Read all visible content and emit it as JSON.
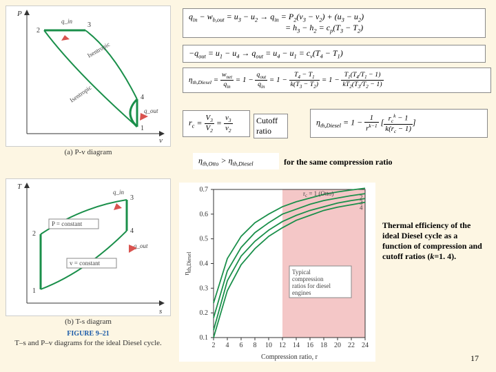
{
  "left": {
    "pv": {
      "y_axis": "P",
      "x_axis": "v",
      "q_in": "q_in",
      "q_out": "q_out",
      "points": [
        "1",
        "2",
        "3",
        "4"
      ],
      "iso_top": "Isentropic",
      "iso_bot": "Isentropic",
      "caption": "(a)  P-v diagram"
    },
    "ts": {
      "y_axis": "T",
      "x_axis": "s",
      "q_in": "q_in",
      "q_out": "q_out",
      "points": [
        "1",
        "2",
        "3",
        "4"
      ],
      "p_const": "P = constant",
      "v_const": "v = constant",
      "caption": "(b)  T-s diagram"
    },
    "fig_label": "FIGURE 9–21",
    "fig_caption": "T–s and P–v diagrams for the ideal Diesel cycle."
  },
  "eq1": {
    "text": "q_in − w_b,out = u_3 − u_2 → q_in = P_2(v_3 − v_2) + (u_3 − u_2)",
    "line2": "= h_3 − h_2 = c_p(T_3 − T_2)"
  },
  "eq2": {
    "text": "−q_out = u_1 − u_4 → q_out = u_4 − u_1 = c_v(T_4 − T_1)"
  },
  "eq3": {
    "lhs": "η_th,Diesel",
    "body": "= w_net / q_in = 1 − q_out / q_in = 1 − (T_4 − T_1)/(k(T_3 − T_2)) = 1 − T_1(T_4/T_1 − 1)/(kT_2(T_3/T_2 − 1))"
  },
  "cutoff_ratio_label": "Cutoff ratio",
  "eq_rc": "r_c = V_3/V_2 = v_3/v_2",
  "eq_eta_rc": {
    "lhs": "η_th,Diesel",
    "body": "= 1 − (1/r^{k−1})·[(r_c^k − 1)/(k(r_c − 1))]"
  },
  "eq_compare": "η_th,Otto > η_th,Diesel",
  "same_cr_text": "for the same compression ratio",
  "right_text": "Thermal efficiency of the ideal Diesel cycle as a function of compression and cutoff ratios (k=1.4).",
  "page": "17",
  "chart": {
    "y_label": "η_th,Diesel",
    "x_label": "Compression ratio, r",
    "xlim": [
      2,
      24
    ],
    "xticks": [
      2,
      4,
      6,
      8,
      10,
      12,
      14,
      16,
      18,
      20,
      22,
      24
    ],
    "ylim": [
      0.1,
      0.7
    ],
    "yticks": [
      0.1,
      0.2,
      0.3,
      0.4,
      0.5,
      0.6,
      0.7
    ],
    "shaded_band_x": [
      12,
      24
    ],
    "shaded_color": "#f4c7c7",
    "shaded_label": "Typical compression ratios for diesel engines",
    "curve_color": "#1a8f4a",
    "curves": {
      "rc1": {
        "label": "r_c = 1 (Otto)",
        "pts": [
          [
            2,
            0.24
          ],
          [
            4,
            0.42
          ],
          [
            6,
            0.51
          ],
          [
            8,
            0.565
          ],
          [
            10,
            0.6
          ],
          [
            12,
            0.63
          ],
          [
            14,
            0.65
          ],
          [
            16,
            0.665
          ],
          [
            18,
            0.68
          ],
          [
            20,
            0.69
          ],
          [
            22,
            0.698
          ],
          [
            24,
            0.705
          ]
        ]
      },
      "rc2": {
        "label": "2",
        "pts": [
          [
            2,
            0.18
          ],
          [
            4,
            0.37
          ],
          [
            6,
            0.465
          ],
          [
            8,
            0.525
          ],
          [
            10,
            0.565
          ],
          [
            12,
            0.6
          ],
          [
            14,
            0.62
          ],
          [
            16,
            0.64
          ],
          [
            18,
            0.655
          ],
          [
            20,
            0.665
          ],
          [
            22,
            0.675
          ],
          [
            24,
            0.683
          ]
        ]
      },
      "rc3": {
        "label": "3",
        "pts": [
          [
            2,
            0.13
          ],
          [
            4,
            0.33
          ],
          [
            6,
            0.43
          ],
          [
            8,
            0.49
          ],
          [
            10,
            0.535
          ],
          [
            12,
            0.57
          ],
          [
            14,
            0.595
          ],
          [
            16,
            0.615
          ],
          [
            18,
            0.63
          ],
          [
            20,
            0.645
          ],
          [
            22,
            0.655
          ],
          [
            24,
            0.663
          ]
        ]
      },
      "rc4": {
        "label": "4",
        "pts": [
          [
            2,
            0.1
          ],
          [
            4,
            0.29
          ],
          [
            6,
            0.395
          ],
          [
            8,
            0.46
          ],
          [
            10,
            0.51
          ],
          [
            12,
            0.545
          ],
          [
            14,
            0.575
          ],
          [
            16,
            0.595
          ],
          [
            18,
            0.615
          ],
          [
            20,
            0.628
          ],
          [
            22,
            0.638
          ],
          [
            24,
            0.648
          ]
        ]
      }
    }
  },
  "colors": {
    "curve": "#1a8f4a",
    "arrow": "#d9534f",
    "axis": "#333"
  }
}
